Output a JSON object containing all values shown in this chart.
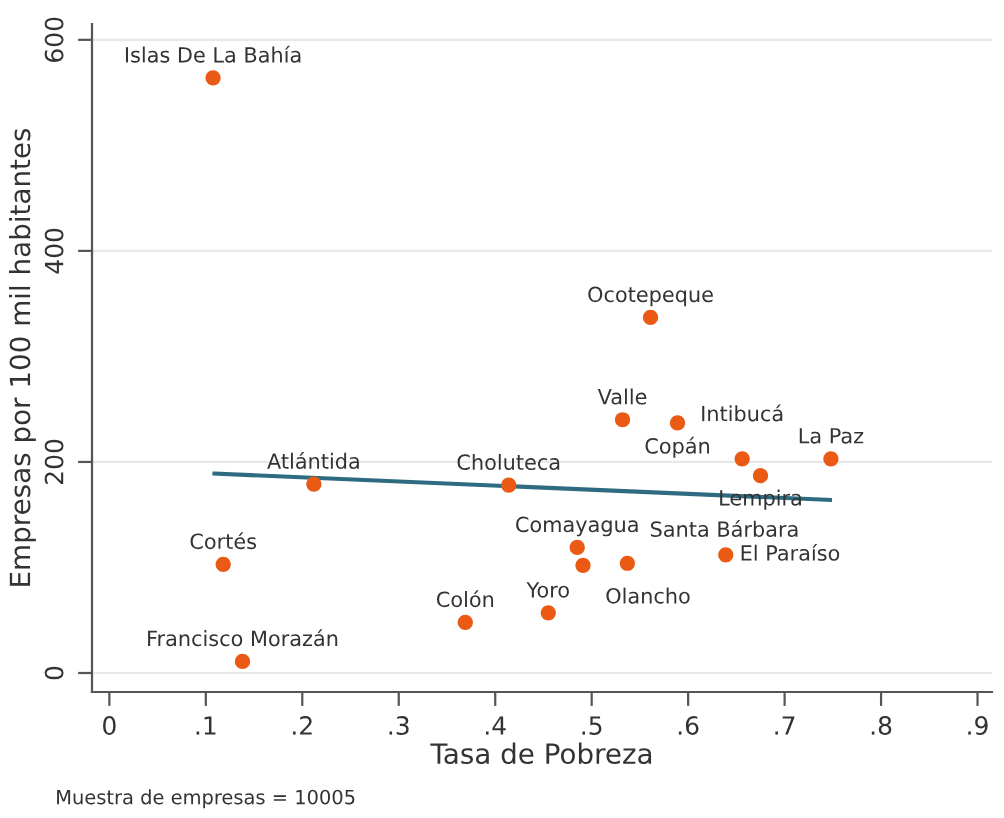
{
  "chart_data": {
    "type": "scatter",
    "xlabel": "Tasa de Pobreza",
    "ylabel": "Empresas por 100 mil habitantes",
    "xlim": [
      -0.018,
      0.915
    ],
    "ylim": [
      -18,
      615
    ],
    "xticks": [
      0,
      {
        "value": 0.1,
        "label": ".1"
      },
      {
        "value": 0.2,
        "label": ".2"
      },
      {
        "value": 0.3,
        "label": ".3"
      },
      {
        "value": 0.4,
        "label": ".4"
      },
      {
        "value": 0.5,
        "label": ".5"
      },
      {
        "value": 0.6,
        "label": ".6"
      },
      {
        "value": 0.7,
        "label": ".7"
      },
      {
        "value": 0.8,
        "label": ".8"
      },
      {
        "value": 0.9,
        "label": ".9"
      }
    ],
    "yticks": [
      0,
      200,
      400,
      600
    ],
    "grid": "y",
    "legend": false,
    "series": [
      {
        "marker": "circle",
        "color": "#ea5a14",
        "x": [
          0.1075,
          0.118,
          0.138,
          0.212,
          0.369,
          0.414,
          0.455,
          0.485,
          0.491,
          0.537,
          0.561,
          0.532,
          0.589,
          0.639,
          0.656,
          0.675,
          0.748
        ],
        "values": [
          564,
          103,
          11,
          179,
          48,
          178,
          57,
          119,
          102,
          104,
          337,
          240,
          237,
          112,
          203,
          187,
          203
        ]
      },
      {
        "type": "line",
        "color": "#2f6b80",
        "x": [
          0.109,
          0.747
        ],
        "values": [
          189,
          164
        ]
      }
    ],
    "annotations": [
      {
        "text": "Islas De La Bahía",
        "x": 0.1075,
        "y": 564
      },
      {
        "text": "Cortés",
        "x": 0.118,
        "y": 103
      },
      {
        "text": "Francisco Morazán",
        "x": 0.138,
        "y": 11
      },
      {
        "text": "Atlántida",
        "x": 0.212,
        "y": 179
      },
      {
        "text": "Colón",
        "x": 0.369,
        "y": 48
      },
      {
        "text": "Choluteca",
        "x": 0.414,
        "y": 178
      },
      {
        "text": "Yoro",
        "x": 0.455,
        "y": 57
      },
      {
        "text": "Comayagua",
        "x": 0.485,
        "y": 119
      },
      {
        "text": "Olancho",
        "x": 0.491,
        "y": 102
      },
      {
        "text": "Santa Bárbara",
        "x": 0.537,
        "y": 104
      },
      {
        "text": "Ocotepeque",
        "x": 0.561,
        "y": 337
      },
      {
        "text": "Valle",
        "x": 0.532,
        "y": 240
      },
      {
        "text": "Copán",
        "x": 0.589,
        "y": 237
      },
      {
        "text": "El Paraíso",
        "x": 0.639,
        "y": 112
      },
      {
        "text": "Intibucá",
        "x": 0.656,
        "y": 203
      },
      {
        "text": "Lempira",
        "x": 0.675,
        "y": 187
      },
      {
        "text": "La Paz",
        "x": 0.748,
        "y": 203
      },
      "Muestra de empresas = 10005"
    ]
  }
}
